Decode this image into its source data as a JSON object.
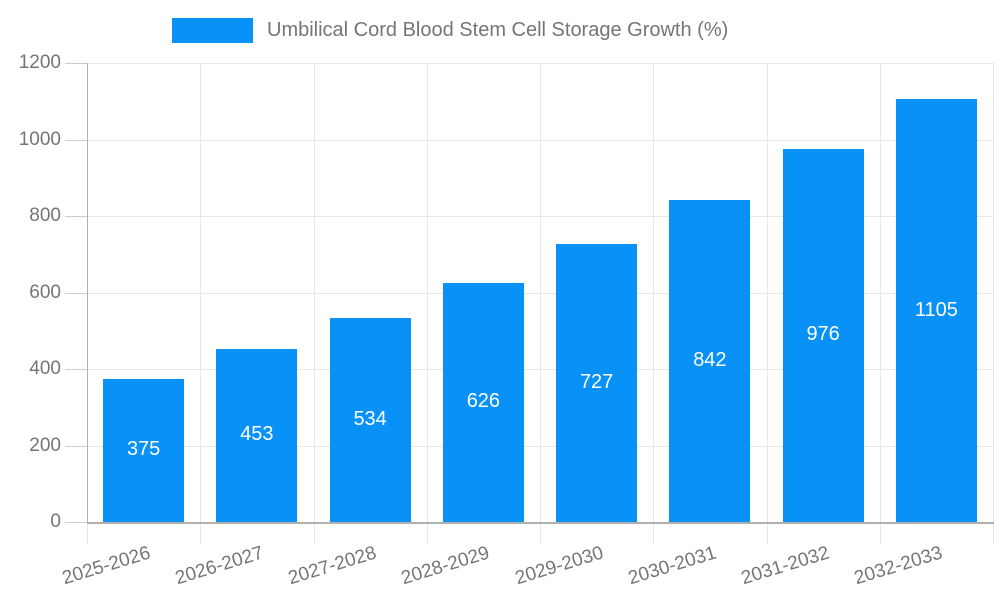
{
  "chart_data": {
    "type": "bar",
    "title": "Umbilical Cord Blood Stem Cell Storage Growth (%)",
    "legend": {
      "label": "Umbilical Cord Blood Stem Cell Storage Growth (%)",
      "position": "top"
    },
    "categories": [
      "2025-2026",
      "2026-2027",
      "2027-2028",
      "2028-2029",
      "2029-2030",
      "2030-2031",
      "2031-2032",
      "2032-2033"
    ],
    "values": [
      375,
      453,
      534,
      626,
      727,
      842,
      976,
      1105
    ],
    "value_labels": [
      "375",
      "453",
      "534",
      "626",
      "727",
      "842",
      "976",
      "1105"
    ],
    "xlabel": "",
    "ylabel": "",
    "ylim": [
      0,
      1200
    ],
    "yticks": [
      0,
      200,
      400,
      600,
      800,
      1000,
      1200
    ],
    "ytick_labels": [
      "0",
      "200",
      "400",
      "600",
      "800",
      "1000",
      "1200"
    ],
    "grid": true,
    "legend_position": "top",
    "x_label_rotation_deg": -17,
    "colors": {
      "bar": "#0892f8",
      "value_label": "#ffffff",
      "axis_text": "#757575",
      "grid": "#e6e6e6",
      "axis_line": "#b0b0b0",
      "tick": "#cccccc"
    }
  }
}
